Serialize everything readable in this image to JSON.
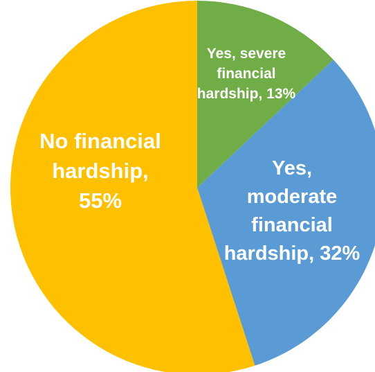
{
  "chart_data": {
    "type": "pie",
    "title": "",
    "slices": [
      {
        "label": "Yes, severe financial hardship",
        "value": 13,
        "color": "#70AD47",
        "label_lines": [
          "Yes, severe",
          "financial",
          "hardship, 13%"
        ]
      },
      {
        "label": "Yes, moderate financial hardship",
        "value": 32,
        "color": "#5B9BD5",
        "label_lines": [
          "Yes,",
          "moderate",
          "financial",
          "hardship, 32%"
        ]
      },
      {
        "label": "No financial hardship",
        "value": 55,
        "color": "#FFC000",
        "label_lines": [
          "No financial",
          "hardship,",
          "55%"
        ]
      }
    ],
    "start_angle_deg": 0,
    "direction": "clockwise",
    "legend": "none",
    "data_labels": "inside"
  }
}
